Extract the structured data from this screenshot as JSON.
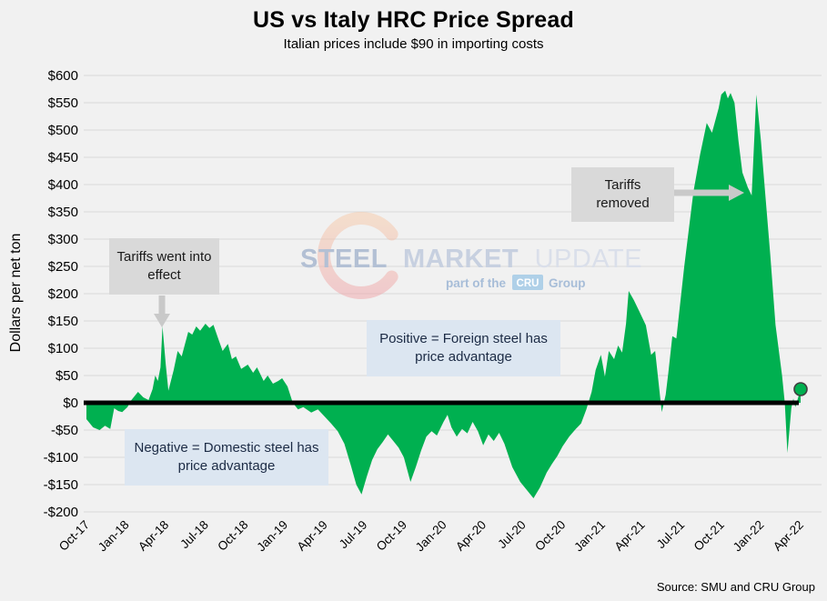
{
  "header": {
    "title": "US vs Italy HRC Price Spread",
    "subtitle": "Italian prices include $90 in importing costs"
  },
  "y_axis": {
    "title": "Dollars per net ton"
  },
  "source": "Source: SMU and CRU Group",
  "watermark": {
    "word1": "STEEL",
    "word2": "MARKET",
    "word3": "UPDATE",
    "tagline_prefix": "part of the",
    "cru": "CRU",
    "tagline_suffix": "Group"
  },
  "annotations": {
    "tariffs_effect": "Tariffs went into effect",
    "tariffs_removed": "Tariffs removed",
    "positive_note": "Positive = Foreign steel has price advantage",
    "negative_note": "Negative = Domestic steel has price advantage"
  },
  "chart_data": {
    "type": "area",
    "title": "US vs Italy HRC Price Spread",
    "subtitle": "Italian prices include $90 in importing costs",
    "xlabel": "",
    "ylabel": "Dollars per net ton",
    "ylim": [
      -200,
      600
    ],
    "y_tick_step": 50,
    "grid": "horizontal",
    "legend_position": "none",
    "x_unit": "months since Oct-2017 (0 = Oct-17, 54 = Apr-22)",
    "x_tick_labels": [
      "Oct-17",
      "Jan-18",
      "Apr-18",
      "Jul-18",
      "Oct-18",
      "Jan-19",
      "Apr-19",
      "Jul-19",
      "Oct-19",
      "Jan-20",
      "Apr-20",
      "Jul-20",
      "Oct-20",
      "Jan-21",
      "Apr-21",
      "Jul-21",
      "Oct-21",
      "Jan-22",
      "Apr-22"
    ],
    "x_tick_month_step": 3,
    "series": [
      {
        "name": "US minus Italy HRC price spread ($ per net ton)",
        "points": [
          [
            0,
            -30
          ],
          [
            0.5,
            -45
          ],
          [
            1,
            -50
          ],
          [
            1.4,
            -42
          ],
          [
            1.8,
            -48
          ],
          [
            2.1,
            -10
          ],
          [
            2.4,
            -15
          ],
          [
            2.7,
            -17
          ],
          [
            3.1,
            -8
          ],
          [
            3.4,
            5
          ],
          [
            3.9,
            20
          ],
          [
            4.3,
            10
          ],
          [
            4.7,
            5
          ],
          [
            5,
            25
          ],
          [
            5.2,
            50
          ],
          [
            5.4,
            40
          ],
          [
            5.6,
            65
          ],
          [
            5.75,
            140
          ],
          [
            6,
            70
          ],
          [
            6.2,
            22
          ],
          [
            6.6,
            60
          ],
          [
            6.9,
            95
          ],
          [
            7.2,
            85
          ],
          [
            7.7,
            130
          ],
          [
            8,
            125
          ],
          [
            8.3,
            140
          ],
          [
            8.6,
            132
          ],
          [
            9,
            145
          ],
          [
            9.3,
            137
          ],
          [
            9.6,
            143
          ],
          [
            10,
            115
          ],
          [
            10.3,
            95
          ],
          [
            10.7,
            108
          ],
          [
            11,
            80
          ],
          [
            11.3,
            85
          ],
          [
            11.7,
            62
          ],
          [
            12.2,
            70
          ],
          [
            12.6,
            55
          ],
          [
            12.9,
            65
          ],
          [
            13.4,
            40
          ],
          [
            13.7,
            50
          ],
          [
            14.1,
            35
          ],
          [
            14.5,
            40
          ],
          [
            14.8,
            45
          ],
          [
            15.2,
            30
          ],
          [
            15.6,
            0
          ],
          [
            16,
            -12
          ],
          [
            16.4,
            -8
          ],
          [
            17,
            -18
          ],
          [
            17.5,
            -12
          ],
          [
            18,
            -25
          ],
          [
            18.5,
            -38
          ],
          [
            19,
            -52
          ],
          [
            19.5,
            -75
          ],
          [
            20,
            -115
          ],
          [
            20.4,
            -150
          ],
          [
            20.8,
            -168
          ],
          [
            21.2,
            -135
          ],
          [
            21.6,
            -105
          ],
          [
            22,
            -85
          ],
          [
            22.4,
            -72
          ],
          [
            22.8,
            -58
          ],
          [
            23.2,
            -70
          ],
          [
            23.6,
            -82
          ],
          [
            24,
            -100
          ],
          [
            24.5,
            -145
          ],
          [
            24.9,
            -118
          ],
          [
            25.3,
            -88
          ],
          [
            25.7,
            -62
          ],
          [
            26.1,
            -52
          ],
          [
            26.5,
            -60
          ],
          [
            27,
            -35
          ],
          [
            27.3,
            -22
          ],
          [
            27.6,
            -45
          ],
          [
            28,
            -62
          ],
          [
            28.4,
            -48
          ],
          [
            28.8,
            -56
          ],
          [
            29.2,
            -35
          ],
          [
            29.6,
            -52
          ],
          [
            30,
            -78
          ],
          [
            30.4,
            -58
          ],
          [
            30.8,
            -70
          ],
          [
            31.2,
            -55
          ],
          [
            31.6,
            -75
          ],
          [
            32.2,
            -118
          ],
          [
            32.8,
            -145
          ],
          [
            33.3,
            -160
          ],
          [
            33.8,
            -175
          ],
          [
            34.3,
            -155
          ],
          [
            34.8,
            -128
          ],
          [
            35.2,
            -112
          ],
          [
            35.6,
            -98
          ],
          [
            36,
            -80
          ],
          [
            36.5,
            -62
          ],
          [
            37,
            -48
          ],
          [
            37.4,
            -38
          ],
          [
            37.8,
            -12
          ],
          [
            38.2,
            20
          ],
          [
            38.5,
            60
          ],
          [
            38.9,
            88
          ],
          [
            39.2,
            48
          ],
          [
            39.5,
            95
          ],
          [
            39.9,
            80
          ],
          [
            40.2,
            105
          ],
          [
            40.5,
            92
          ],
          [
            40.8,
            145
          ],
          [
            41,
            205
          ],
          [
            41.4,
            188
          ],
          [
            41.8,
            168
          ],
          [
            42.3,
            142
          ],
          [
            42.7,
            88
          ],
          [
            43,
            95
          ],
          [
            43.5,
            -17
          ],
          [
            43.8,
            15
          ],
          [
            44,
            55
          ],
          [
            44.3,
            122
          ],
          [
            44.6,
            118
          ],
          [
            45.2,
            250
          ],
          [
            45.9,
            388
          ],
          [
            46.4,
            455
          ],
          [
            46.9,
            513
          ],
          [
            47.3,
            495
          ],
          [
            47.8,
            540
          ],
          [
            48,
            565
          ],
          [
            48.3,
            572
          ],
          [
            48.5,
            558
          ],
          [
            48.7,
            568
          ],
          [
            49,
            550
          ],
          [
            49.3,
            480
          ],
          [
            49.6,
            422
          ],
          [
            50,
            395
          ],
          [
            50.3,
            380
          ],
          [
            50.65,
            565
          ],
          [
            51,
            480
          ],
          [
            51.2,
            420
          ],
          [
            51.7,
            272
          ],
          [
            52.1,
            143
          ],
          [
            52.6,
            50
          ],
          [
            52.8,
            0
          ],
          [
            53,
            -92
          ],
          [
            53.3,
            -10
          ],
          [
            53.45,
            8
          ],
          [
            53.6,
            -8
          ],
          [
            54,
            25
          ]
        ]
      }
    ],
    "last_point": {
      "x_label": "Apr-22",
      "value": 25,
      "marker": "circle"
    },
    "colors": {
      "area": "#00B050",
      "zero_line": "#000000",
      "gridline": "#D9D9D9",
      "background": "#F1F1F1",
      "note_box_gray": "#D9D9D9",
      "note_box_blue": "#DCE6F1",
      "arrow": "#C9C9C9",
      "marker_fill": "#00B050",
      "marker_stroke": "#3F3F3F"
    }
  }
}
